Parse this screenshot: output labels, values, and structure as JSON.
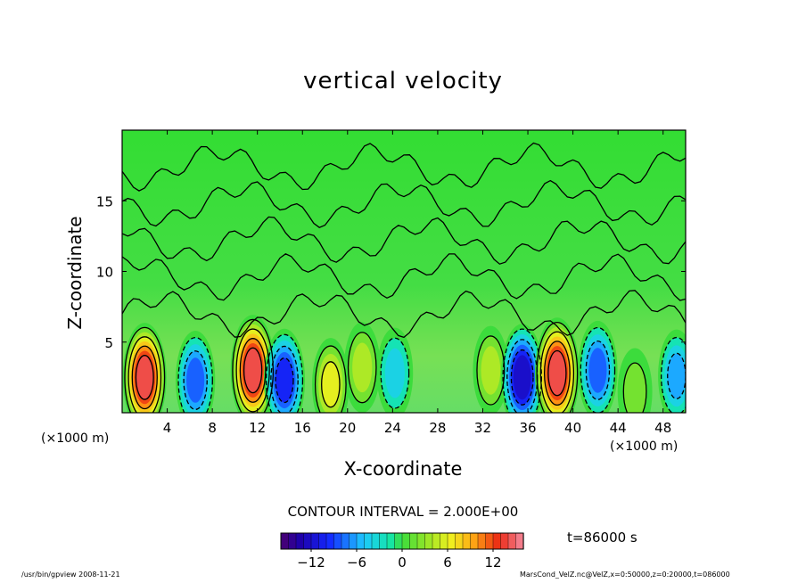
{
  "page": {
    "title": "vertical velocity",
    "x_unit_left": "(×1000 m)",
    "x_unit_right": "(×1000 m)",
    "contour_interval": "CONTOUR INTERVAL = 2.000E+00",
    "time": "t=86000 s",
    "footer_left": "/usr/bin/gpview  2008-11-21",
    "footer_right": "MarsCond_VelZ.nc@VelZ,x=0:50000,z=0:20000,t=086000"
  },
  "chart_data": {
    "type": "heatmap",
    "title": "vertical velocity",
    "xlabel": "X-coordinate",
    "ylabel": "Z-coordinate",
    "x_unit": "(×1000 m)",
    "y_unit": "(×1000 m)",
    "xlim": [
      0,
      50
    ],
    "ylim": [
      0,
      20
    ],
    "xticks": [
      4,
      8,
      12,
      16,
      20,
      24,
      28,
      32,
      36,
      40,
      44,
      48
    ],
    "yticks": [
      5,
      10,
      15
    ],
    "contour_interval": 2.0,
    "time_s": 86000,
    "colorbar": {
      "min": -16,
      "max": 16,
      "ticks": [
        -12,
        -6,
        0,
        6,
        12
      ]
    },
    "features": [
      {
        "x": 2.0,
        "z": 2.5,
        "w": 14,
        "sign": "positive"
      },
      {
        "x": 6.5,
        "z": 2.3,
        "w": -9,
        "sign": "negative"
      },
      {
        "x": 11.6,
        "z": 3.0,
        "w": 15,
        "sign": "positive"
      },
      {
        "x": 14.4,
        "z": 2.3,
        "w": -11,
        "sign": "negative"
      },
      {
        "x": 18.5,
        "z": 2.0,
        "w": 6,
        "sign": "positive"
      },
      {
        "x": 21.3,
        "z": 3.2,
        "w": 5,
        "sign": "positive"
      },
      {
        "x": 24.2,
        "z": 2.8,
        "w": -5,
        "sign": "negative"
      },
      {
        "x": 32.7,
        "z": 3.0,
        "w": 4,
        "sign": "positive"
      },
      {
        "x": 35.5,
        "z": 2.5,
        "w": -13,
        "sign": "negative"
      },
      {
        "x": 38.6,
        "z": 2.8,
        "w": 15,
        "sign": "positive"
      },
      {
        "x": 42.2,
        "z": 3.0,
        "w": -9,
        "sign": "negative"
      },
      {
        "x": 45.5,
        "z": 1.5,
        "w": 3,
        "sign": "positive"
      },
      {
        "x": 49.2,
        "z": 2.6,
        "w": -6,
        "sign": "negative"
      }
    ]
  }
}
